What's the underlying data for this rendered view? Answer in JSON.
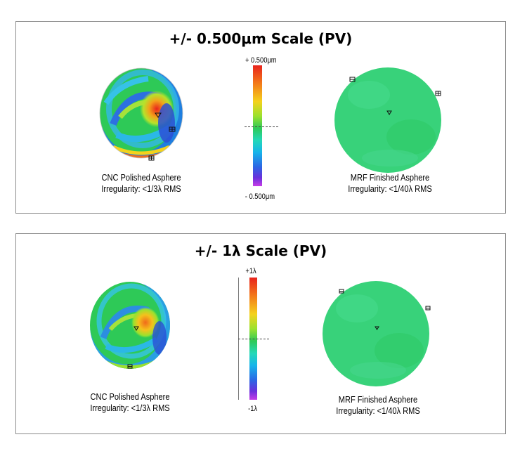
{
  "panels": [
    {
      "title": "+/- 0.500μm Scale (PV)",
      "scale_top": "+ 0.500μm",
      "scale_bottom": "- 0.500μm",
      "left": {
        "name": "CNC Polished Asphere",
        "spec": "Irregularity: <1/3λ RMS"
      },
      "right": {
        "name": "MRF Finished Asphere",
        "spec": "Irregularity: <1/40λ RMS"
      }
    },
    {
      "title": "+/- 1λ Scale (PV)",
      "scale_top": "+1λ",
      "scale_bottom": "-1λ",
      "left": {
        "name": "CNC Polished Asphere",
        "spec": "Irregularity: <1/3λ RMS"
      },
      "right": {
        "name": "MRF Finished Asphere",
        "spec": "Irregularity: <1/40λ RMS"
      }
    }
  ],
  "colors": {
    "border": "#8a8a8a",
    "mrf_surface": "#38d27a",
    "cnc_base": "#2ec957",
    "scale_high": "#e8231c",
    "scale_low": "#c63de6"
  },
  "icons": [
    "marker-triangle-icon",
    "marker-square-icon"
  ]
}
